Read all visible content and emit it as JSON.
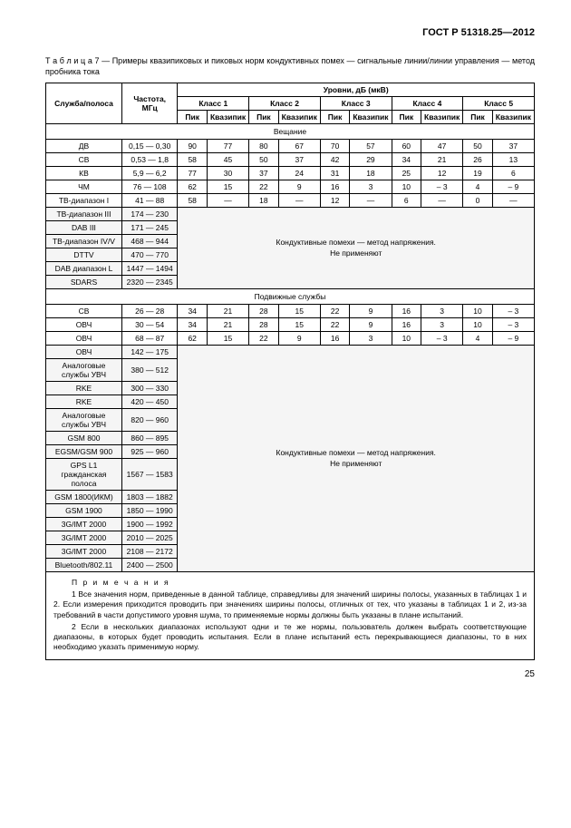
{
  "document": {
    "header": "ГОСТ Р 51318.25—2012",
    "table_label": "Т а б л и ц а  7",
    "table_caption": " — Примеры квазипиковых и пиковых норм кондуктивных помех — сигнальные линии/линии управления — метод пробника тока",
    "page_number": "25"
  },
  "columns": {
    "service": "Служба/полоса",
    "freq": "Частота, МГц",
    "levels": "Уровни, дБ (мкВ)",
    "classes": [
      "Класс 1",
      "Класс 2",
      "Класс 3",
      "Класс 4",
      "Класс 5"
    ],
    "peak": "Пик",
    "quasi": "Квазипик"
  },
  "sections": {
    "broadcast": "Вещание",
    "mobile": "Подвижные службы"
  },
  "broadcast_rows": [
    {
      "svc": "ДВ",
      "freq": "0,15 — 0,30",
      "v": [
        "90",
        "77",
        "80",
        "67",
        "70",
        "57",
        "60",
        "47",
        "50",
        "37"
      ]
    },
    {
      "svc": "СВ",
      "freq": "0,53 — 1,8",
      "v": [
        "58",
        "45",
        "50",
        "37",
        "42",
        "29",
        "34",
        "21",
        "26",
        "13"
      ]
    },
    {
      "svc": "КВ",
      "freq": "5,9 — 6,2",
      "v": [
        "77",
        "30",
        "37",
        "24",
        "31",
        "18",
        "25",
        "12",
        "19",
        "6"
      ]
    },
    {
      "svc": "ЧМ",
      "freq": "76 — 108",
      "v": [
        "62",
        "15",
        "22",
        "9",
        "16",
        "3",
        "10",
        "– 3",
        "4",
        "– 9"
      ]
    },
    {
      "svc": "ТВ-диапазон I",
      "freq": "41 — 88",
      "v": [
        "58",
        "—",
        "18",
        "—",
        "12",
        "—",
        "6",
        "—",
        "0",
        "—"
      ]
    }
  ],
  "broadcast_shaded": [
    {
      "svc": "ТВ-диапазон III",
      "freq": "174 — 230"
    },
    {
      "svc": "DAB III",
      "freq": "171 — 245"
    },
    {
      "svc": "ТВ-диапазон IV/V",
      "freq": "468 — 944"
    },
    {
      "svc": "DTTV",
      "freq": "470 — 770"
    },
    {
      "svc": "DAB диапазон L",
      "freq": "1447 — 1494"
    },
    {
      "svc": "SDARS",
      "freq": "2320 — 2345"
    }
  ],
  "mobile_rows": [
    {
      "svc": "СВ",
      "freq": "26 — 28",
      "v": [
        "34",
        "21",
        "28",
        "15",
        "22",
        "9",
        "16",
        "3",
        "10",
        "– 3"
      ]
    },
    {
      "svc": "ОВЧ",
      "freq": "30 — 54",
      "v": [
        "34",
        "21",
        "28",
        "15",
        "22",
        "9",
        "16",
        "3",
        "10",
        "– 3"
      ]
    },
    {
      "svc": "ОВЧ",
      "freq": "68 — 87",
      "v": [
        "62",
        "15",
        "22",
        "9",
        "16",
        "3",
        "10",
        "– 3",
        "4",
        "– 9"
      ]
    }
  ],
  "mobile_shaded": [
    {
      "svc": "ОВЧ",
      "freq": "142 — 175"
    },
    {
      "svc": "Аналоговые службы УВЧ",
      "freq": "380 — 512"
    },
    {
      "svc": "RKE",
      "freq": "300 — 330"
    },
    {
      "svc": "RKE",
      "freq": "420 — 450"
    },
    {
      "svc": "Аналоговые службы УВЧ",
      "freq": "820 — 960"
    },
    {
      "svc": "GSM 800",
      "freq": "860 — 895"
    },
    {
      "svc": "EGSM/GSM 900",
      "freq": "925 — 960"
    },
    {
      "svc": "GPS L1 гражданская полоса",
      "freq": "1567 — 1583"
    },
    {
      "svc": "GSM 1800(ИКМ)",
      "freq": "1803 — 1882"
    },
    {
      "svc": "GSM 1900",
      "freq": "1850 — 1990"
    },
    {
      "svc": "3G/IMT 2000",
      "freq": "1900 — 1992"
    },
    {
      "svc": "3G/IMT 2000",
      "freq": "2010 — 2025"
    },
    {
      "svc": "3G/IMT 2000",
      "freq": "2108 — 2172"
    },
    {
      "svc": "Bluetooth/802.11",
      "freq": "2400 — 2500"
    }
  ],
  "message": {
    "line1": "Кондуктивные помехи — метод напряжения.",
    "line2": "Не применяют"
  },
  "notes": {
    "title": "П р и м е ч а н и я",
    "n1": "1 Все значения норм, приведенные в данной таблице, справедливы для значений ширины полосы, указанных в таблицах 1 и 2. Если измерения приходится проводить при значениях ширины полосы, отличных от тех, что указаны в таблицах 1 и 2, из-за требований в части допустимого уровня шума, то применяемые нормы должны быть указаны в плане испытаний.",
    "n2": "2 Если в нескольких диапазонах используют одни и те же нормы, пользователь должен выбрать соответствующие диапазоны, в которых будет проводить испытания. Если в плане испытаний есть перекрывающиеся диапазоны, то в них необходимо указать применимую норму."
  },
  "style": {
    "col_widths": {
      "svc": "90px",
      "freq": "70px",
      "val": "37px"
    }
  }
}
